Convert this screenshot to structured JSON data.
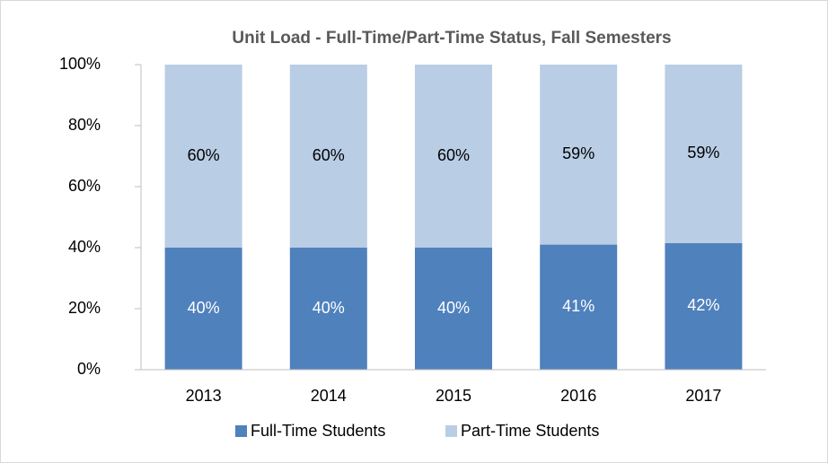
{
  "chart_data": {
    "type": "stacked_bar",
    "title": "Unit Load - Full-Time/Part-Time Status, Fall Semesters",
    "categories": [
      "2013",
      "2014",
      "2015",
      "2016",
      "2017"
    ],
    "series": [
      {
        "name": "Full-Time Students",
        "color": "#4f81bd",
        "values": [
          40,
          40,
          40,
          41,
          41.5
        ],
        "value_labels": [
          "40%",
          "40%",
          "40%",
          "41%",
          "42%"
        ]
      },
      {
        "name": "Part-Time Students",
        "color": "#b9cde5",
        "values": [
          60,
          60,
          60,
          59,
          58.5
        ],
        "value_labels": [
          "60%",
          "60%",
          "60%",
          "59%",
          "59%"
        ]
      }
    ],
    "ylim": [
      0,
      100
    ],
    "yticks": [
      {
        "value": 0,
        "label": "0%"
      },
      {
        "value": 20,
        "label": "20%"
      },
      {
        "value": 40,
        "label": "40%"
      },
      {
        "value": 60,
        "label": "60%"
      },
      {
        "value": 80,
        "label": "80%"
      },
      {
        "value": 100,
        "label": "100%"
      }
    ],
    "legend": "bottom"
  }
}
